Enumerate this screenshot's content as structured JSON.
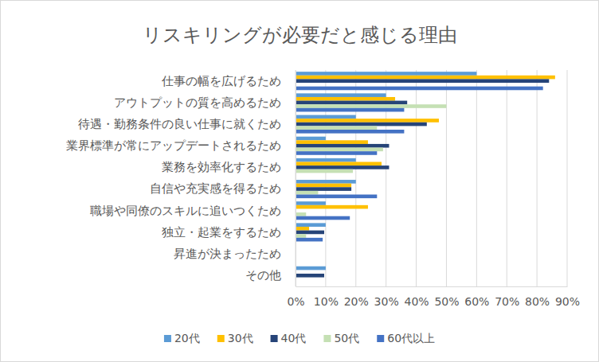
{
  "chart_data": {
    "type": "bar",
    "orientation": "horizontal",
    "title": "リスキリングが必要だと感じる理由",
    "categories": [
      "仕事の幅を広げるため",
      "アウトプットの質を高めるため",
      "待遇・勤務条件の良い仕事に就くため",
      "業界標準が常にアップデートされるため",
      "業務を効率化するため",
      "自信や充実感を得るため",
      "職場や同僚のスキルに追いつくため",
      "独立・起業をするため",
      "昇進が決まったため",
      "その他"
    ],
    "series": [
      {
        "name": "20代",
        "color": "#5b9bd5",
        "values": [
          60,
          30,
          20,
          10,
          20,
          20,
          10,
          10,
          0,
          10
        ]
      },
      {
        "name": "30代",
        "color": "#ffc000",
        "values": [
          86,
          33,
          47.5,
          24,
          28.5,
          18.5,
          24,
          4.5,
          0,
          0
        ]
      },
      {
        "name": "40代",
        "color": "#264478",
        "values": [
          84,
          37,
          43.5,
          31,
          31,
          18.5,
          0,
          9.5,
          0,
          9.5
        ]
      },
      {
        "name": "50代",
        "color": "#c5e0b4",
        "values": [
          0,
          50,
          27,
          29,
          19,
          7.5,
          3.5,
          3.5,
          0,
          0
        ]
      },
      {
        "name": "60代以上",
        "color": "#4472c4",
        "values": [
          82,
          36,
          36,
          27,
          0,
          27,
          18,
          9,
          0,
          0
        ]
      }
    ],
    "xlim": [
      0,
      90
    ],
    "xticks": [
      {
        "value": 0,
        "label": "0%"
      },
      {
        "value": 10,
        "label": "10%"
      },
      {
        "value": 20,
        "label": "20%"
      },
      {
        "value": 30,
        "label": "30%"
      },
      {
        "value": 40,
        "label": "40%"
      },
      {
        "value": 50,
        "label": "50%"
      },
      {
        "value": 60,
        "label": "60%"
      },
      {
        "value": 70,
        "label": "70%"
      },
      {
        "value": 80,
        "label": "80%"
      },
      {
        "value": 90,
        "label": "90%"
      }
    ],
    "grid": true,
    "legend": "bottom"
  }
}
